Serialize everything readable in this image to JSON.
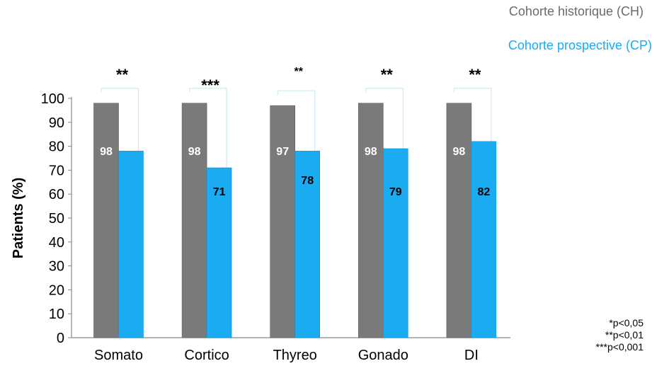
{
  "legend": {
    "ch_label": "Cohorte historique (CH)",
    "cp_label": "Cohorte prospective (CP)"
  },
  "footnotes": [
    "*p<0,05",
    "**p<0,01",
    "***p<0,001"
  ],
  "colors": {
    "ch": "#7a7a7a",
    "cp": "#1aabf0"
  },
  "chart_data": {
    "type": "bar",
    "categories": [
      "Somato",
      "Cortico",
      "Thyreo",
      "Gonado",
      "DI"
    ],
    "series": [
      {
        "name": "Cohorte historique (CH)",
        "values": [
          98,
          98,
          97,
          98,
          98
        ]
      },
      {
        "name": "Cohorte prospective (CP)",
        "values": [
          78,
          71,
          78,
          79,
          82
        ]
      }
    ],
    "value_labels": {
      "ch": [
        "98",
        "98",
        "97",
        "98",
        "98"
      ],
      "cp": [
        "",
        "71",
        "78",
        "79",
        "82"
      ]
    },
    "significance": [
      "**",
      "***",
      "**",
      "**",
      "**"
    ],
    "ylabel": "Patients (%)",
    "xlabel": "",
    "ylim": [
      0,
      100
    ],
    "yticks": [
      0,
      10,
      20,
      30,
      40,
      50,
      60,
      70,
      80,
      90,
      100
    ],
    "grid": false,
    "legend_position": "top-right"
  }
}
